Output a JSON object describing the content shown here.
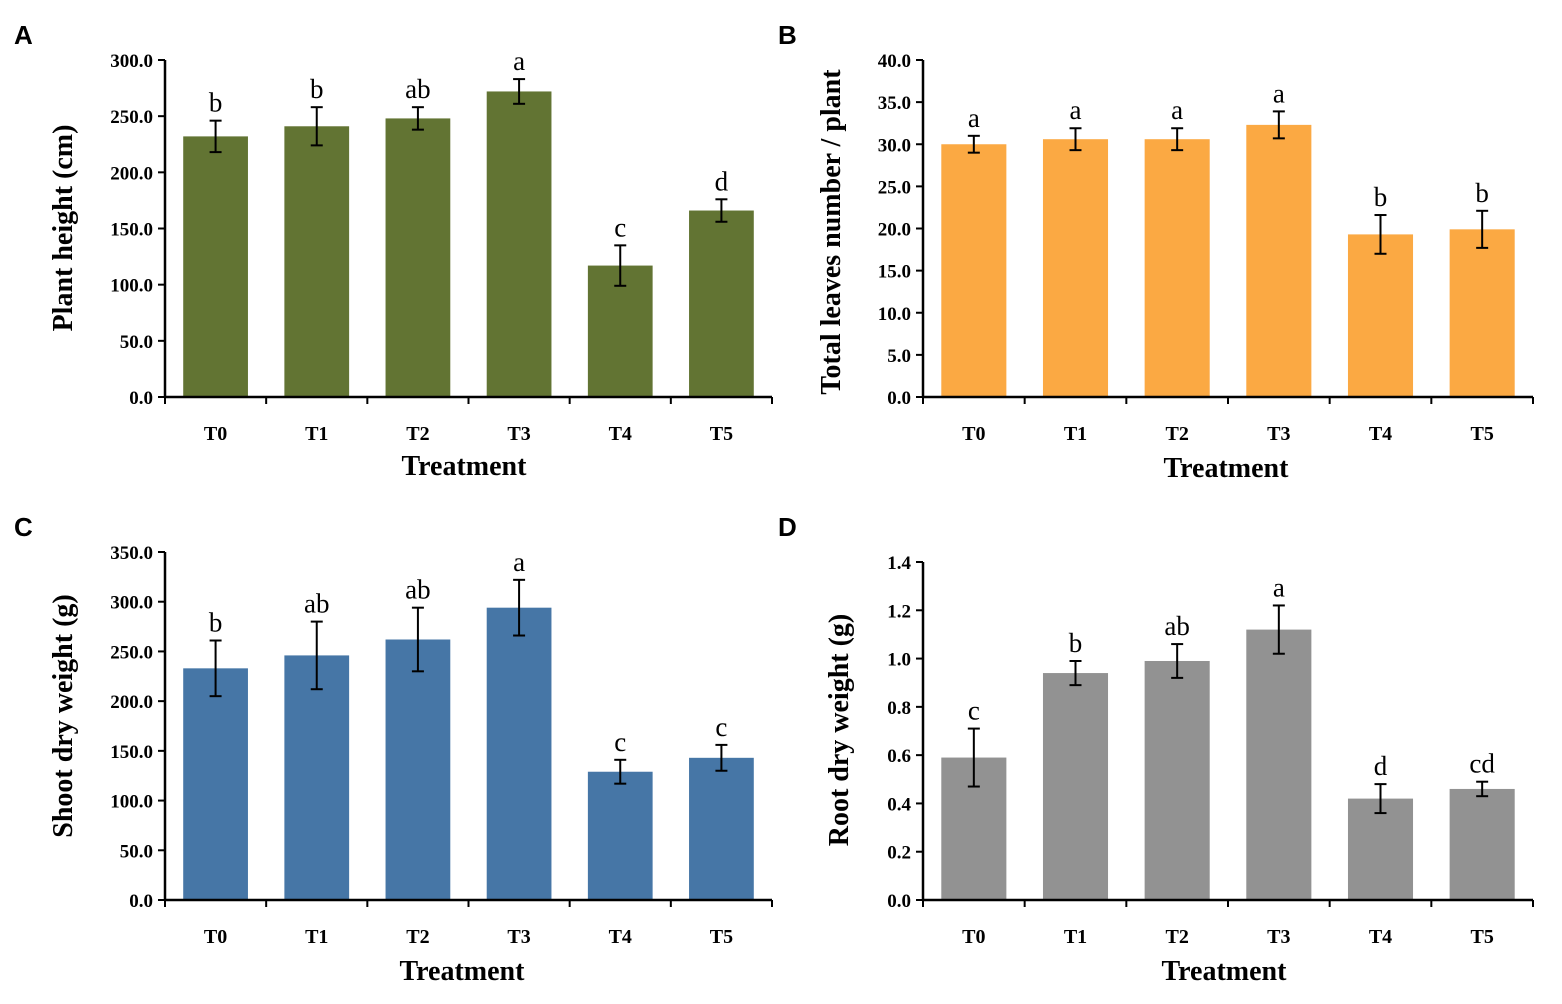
{
  "chart_data": [
    {
      "panel": "A",
      "type": "bar",
      "title": "",
      "categories": [
        "T0",
        "T1",
        "T2",
        "T3",
        "T4",
        "T5"
      ],
      "values": [
        232,
        241,
        248,
        272,
        117,
        166
      ],
      "errors": [
        14,
        17,
        10,
        11,
        18,
        10
      ],
      "significance": [
        "b",
        "b",
        "ab",
        "a",
        "c",
        "d"
      ],
      "xlabel": "Treatment",
      "ylabel": "Plant height (cm)",
      "ylim": [
        0,
        300
      ],
      "yticks": [
        "0.0",
        "50.0",
        "100.0",
        "150.0",
        "200.0",
        "250.0",
        "300.0"
      ],
      "color": "#627433"
    },
    {
      "panel": "B",
      "type": "bar",
      "title": "",
      "categories": [
        "T0",
        "T1",
        "T2",
        "T3",
        "T4",
        "T5"
      ],
      "values": [
        30.0,
        30.6,
        30.6,
        32.3,
        19.3,
        19.9
      ],
      "errors": [
        1.0,
        1.3,
        1.3,
        1.6,
        2.3,
        2.2
      ],
      "significance": [
        "a",
        "a",
        "a",
        "a",
        "b",
        "b"
      ],
      "xlabel": "Treatment",
      "ylabel": "Total leaves number / plant",
      "ylim": [
        0,
        40
      ],
      "yticks": [
        "0.0",
        "5.0",
        "10.0",
        "15.0",
        "20.0",
        "25.0",
        "30.0",
        "35.0",
        "40.0"
      ],
      "color": "#fba943"
    },
    {
      "panel": "C",
      "type": "bar",
      "title": "",
      "categories": [
        "T0",
        "T1",
        "T2",
        "T3",
        "T4",
        "T5"
      ],
      "values": [
        233,
        246,
        262,
        294,
        129,
        143
      ],
      "errors": [
        28,
        34,
        32,
        28,
        12,
        13
      ],
      "significance": [
        "b",
        "ab",
        "ab",
        "a",
        "c",
        "c"
      ],
      "xlabel": "Treatment",
      "ylabel": "Shoot dry weight (g)",
      "ylim": [
        0,
        350
      ],
      "yticks": [
        "0.0",
        "50.0",
        "100.0",
        "150.0",
        "200.0",
        "250.0",
        "300.0",
        "350.0"
      ],
      "color": "#4676a6"
    },
    {
      "panel": "D",
      "type": "bar",
      "title": "",
      "categories": [
        "T0",
        "T1",
        "T2",
        "T3",
        "T4",
        "T5"
      ],
      "values": [
        0.59,
        0.94,
        0.99,
        1.12,
        0.42,
        0.46
      ],
      "errors": [
        0.12,
        0.05,
        0.07,
        0.1,
        0.06,
        0.03
      ],
      "significance": [
        "c",
        "b",
        "ab",
        "a",
        "d",
        "cd"
      ],
      "xlabel": "Treatment",
      "ylabel": "Root dry weight (g)",
      "ylim": [
        0,
        1.4
      ],
      "yticks": [
        "0.0",
        "0.2",
        "0.4",
        "0.6",
        "0.8",
        "1.0",
        "1.2",
        "1.4"
      ],
      "color": "#929292"
    }
  ]
}
